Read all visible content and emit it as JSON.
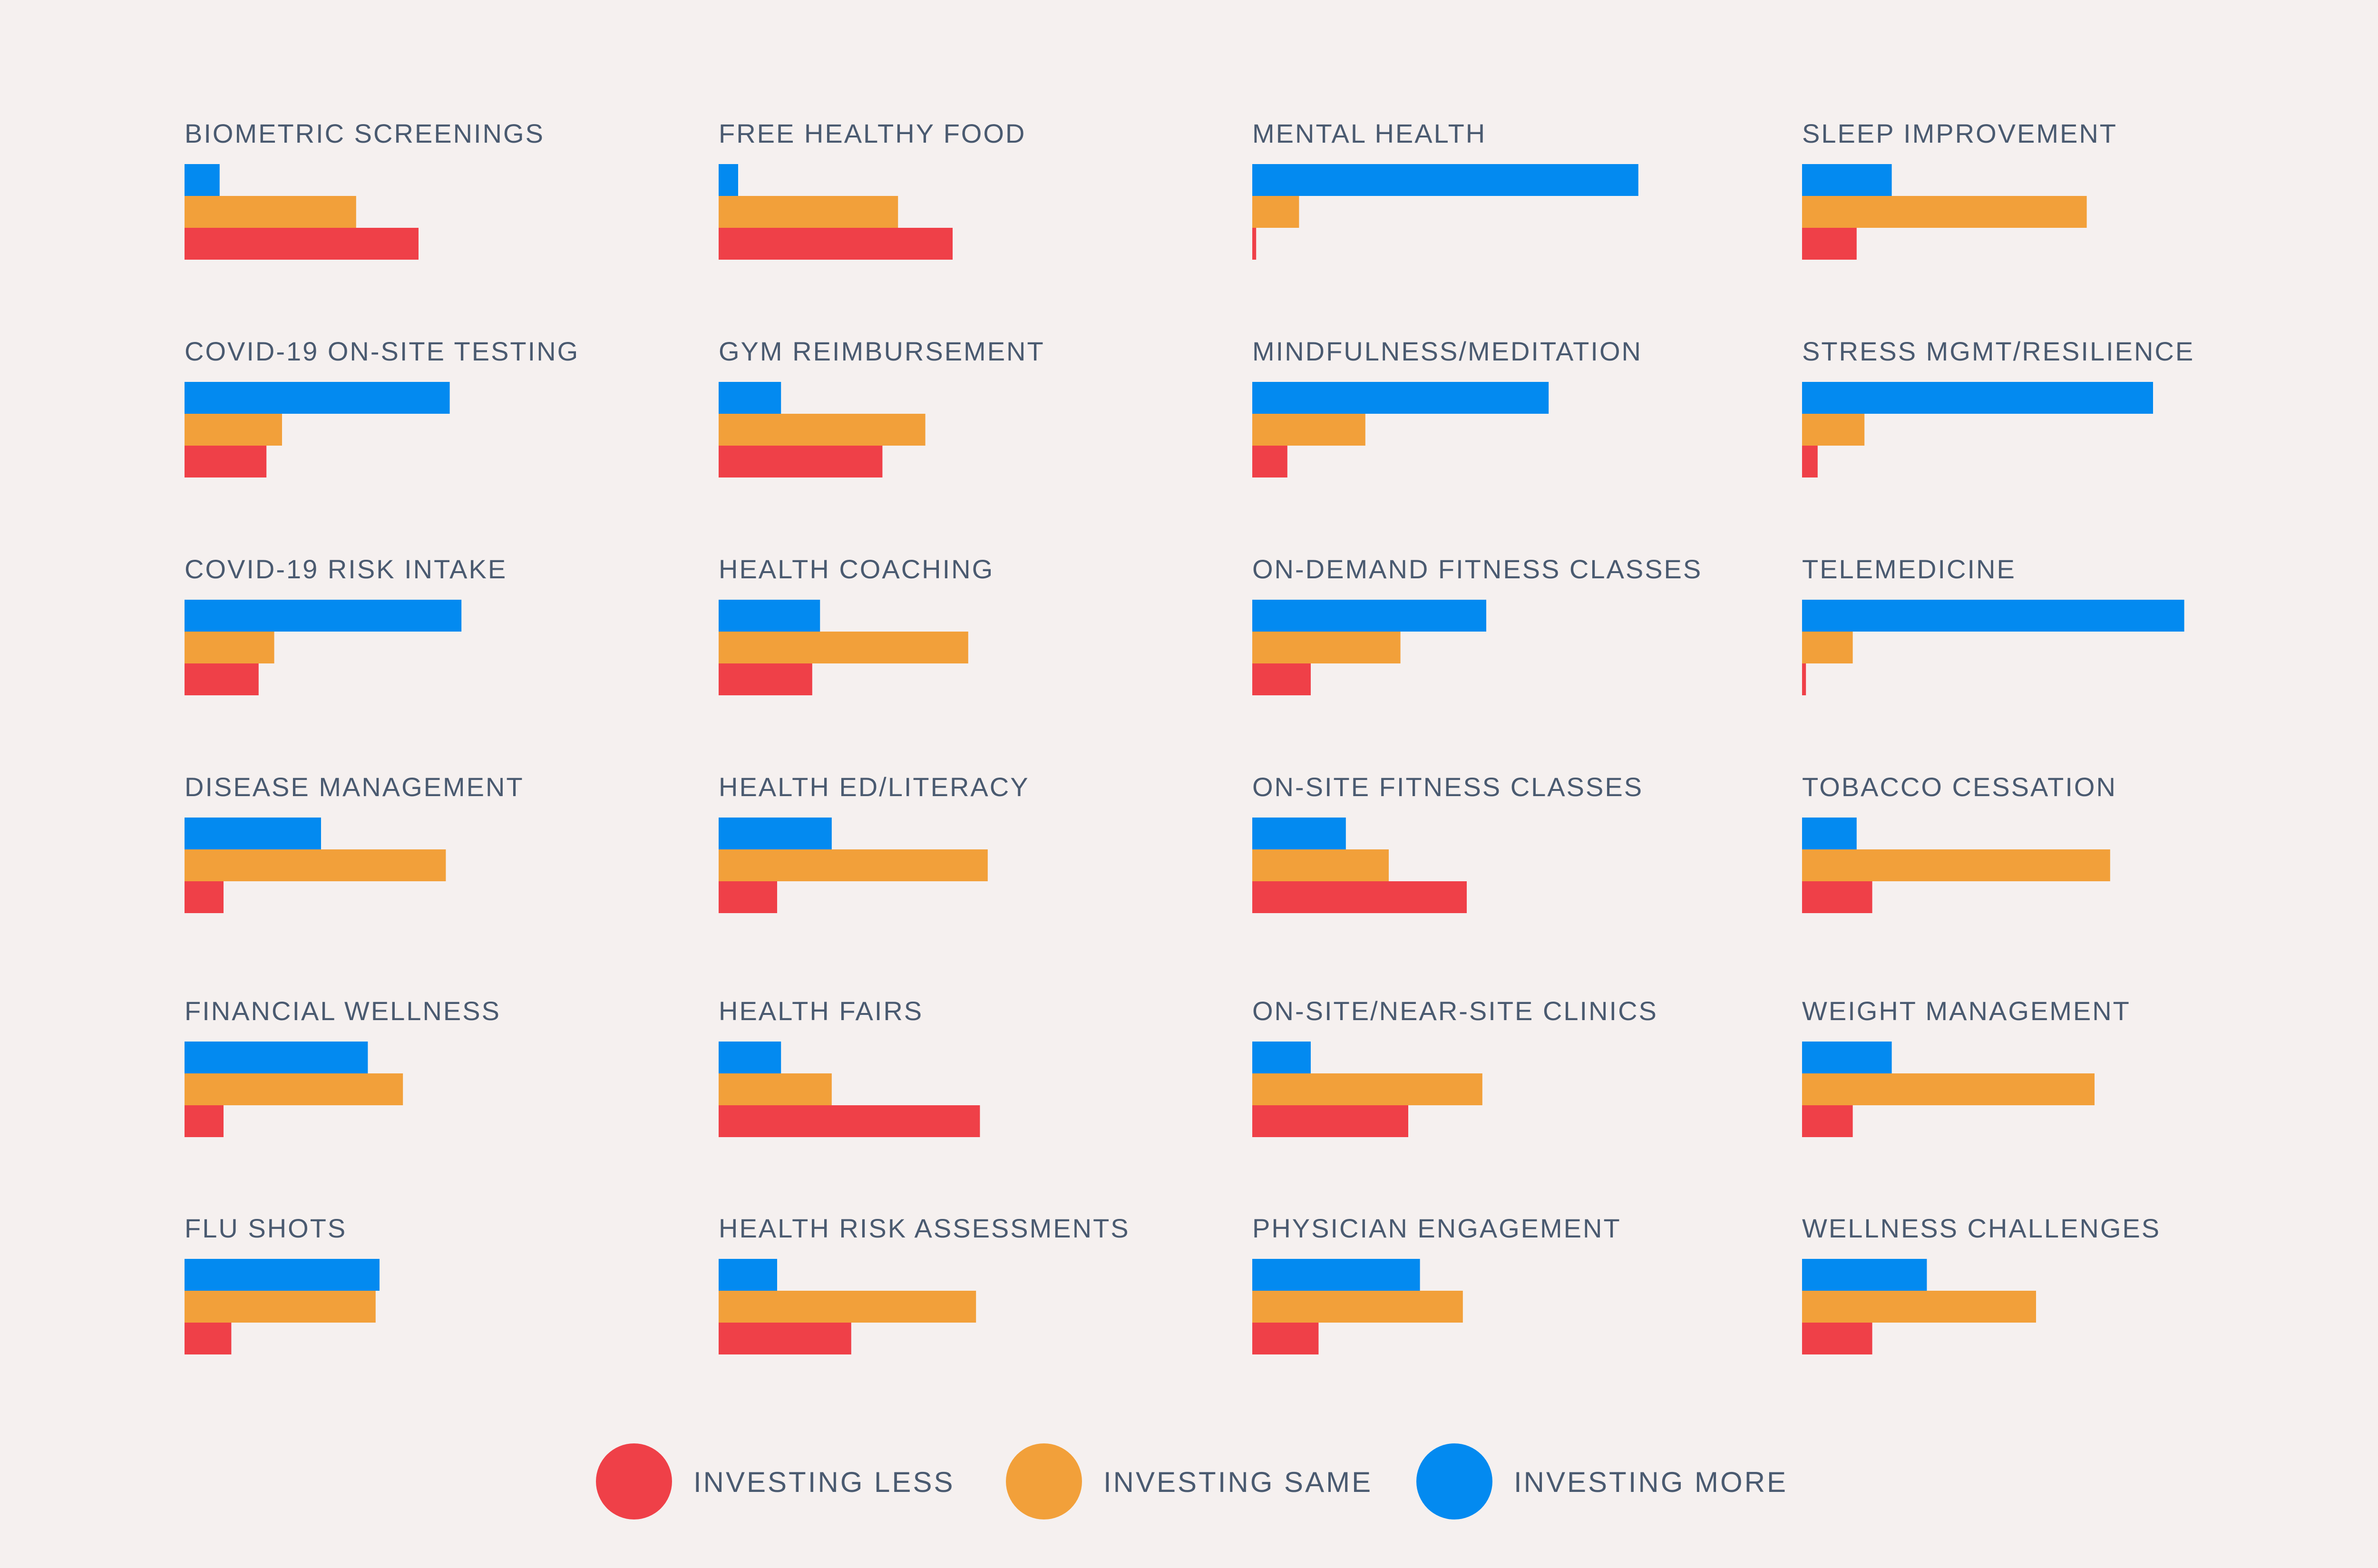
{
  "legend": {
    "items": [
      {
        "label": "INVESTING LESS",
        "color": "#ef4048"
      },
      {
        "label": "INVESTING SAME",
        "color": "#f2a03a"
      },
      {
        "label": "INVESTING MORE",
        "color": "#038af0"
      }
    ]
  },
  "chart_data": {
    "type": "bar",
    "orientation": "horizontal",
    "layout": "small-multiples",
    "grid": false,
    "legend_position": "bottom",
    "series_order_top_to_bottom": [
      "INVESTING MORE",
      "INVESTING SAME",
      "INVESTING LESS"
    ],
    "colors": {
      "more": "#038af0",
      "same": "#f2a03a",
      "less": "#ef4048"
    },
    "xlim": [
      0,
      100
    ],
    "panels": [
      {
        "title": "BIOMETRIC SCREENINGS",
        "more": 9,
        "same": 44,
        "less": 60
      },
      {
        "title": "FREE HEALTHY FOOD",
        "more": 5,
        "same": 46,
        "less": 60
      },
      {
        "title": "MENTAL HEALTH",
        "more": 99,
        "same": 12,
        "less": 1
      },
      {
        "title": "SLEEP IMPROVEMENT",
        "more": 23,
        "same": 73,
        "less": 14
      },
      {
        "title": "COVID-19 ON-SITE TESTING",
        "more": 68,
        "same": 25,
        "less": 21
      },
      {
        "title": "GYM REIMBURSEMENT",
        "more": 16,
        "same": 53,
        "less": 42
      },
      {
        "title": "MINDFULNESS/MEDITATION",
        "more": 76,
        "same": 29,
        "less": 9
      },
      {
        "title": "STRESS MGMT/RESILIENCE",
        "more": 90,
        "same": 16,
        "less": 4
      },
      {
        "title": "COVID-19 RISK INTAKE",
        "more": 71,
        "same": 23,
        "less": 19
      },
      {
        "title": "HEALTH COACHING",
        "more": 26,
        "same": 64,
        "less": 24
      },
      {
        "title": "ON-DEMAND FITNESS CLASSES",
        "more": 60,
        "same": 38,
        "less": 15
      },
      {
        "title": "TELEMEDICINE",
        "more": 98,
        "same": 13,
        "less": 1
      },
      {
        "title": "DISEASE MANAGEMENT",
        "more": 35,
        "same": 67,
        "less": 10
      },
      {
        "title": "HEALTH ED/LITERACY",
        "more": 29,
        "same": 69,
        "less": 15
      },
      {
        "title": "ON-SITE FITNESS CLASSES",
        "more": 24,
        "same": 35,
        "less": 55
      },
      {
        "title": "TOBACCO CESSATION",
        "more": 14,
        "same": 79,
        "less": 18
      },
      {
        "title": "FINANCIAL WELLNESS",
        "more": 47,
        "same": 56,
        "less": 10
      },
      {
        "title": "HEALTH FAIRS",
        "more": 16,
        "same": 29,
        "less": 67
      },
      {
        "title": "ON-SITE/NEAR-SITE CLINICS",
        "more": 15,
        "same": 59,
        "less": 40
      },
      {
        "title": "WEIGHT MANAGEMENT",
        "more": 23,
        "same": 75,
        "less": 13
      },
      {
        "title": "FLU SHOTS",
        "more": 50,
        "same": 49,
        "less": 12
      },
      {
        "title": "HEALTH RISK ASSESSMENTS",
        "more": 15,
        "same": 66,
        "less": 34
      },
      {
        "title": "PHYSICIAN ENGAGEMENT",
        "more": 43,
        "same": 54,
        "less": 17
      },
      {
        "title": "WELLNESS CHALLENGES",
        "more": 32,
        "same": 60,
        "less": 18
      }
    ]
  }
}
